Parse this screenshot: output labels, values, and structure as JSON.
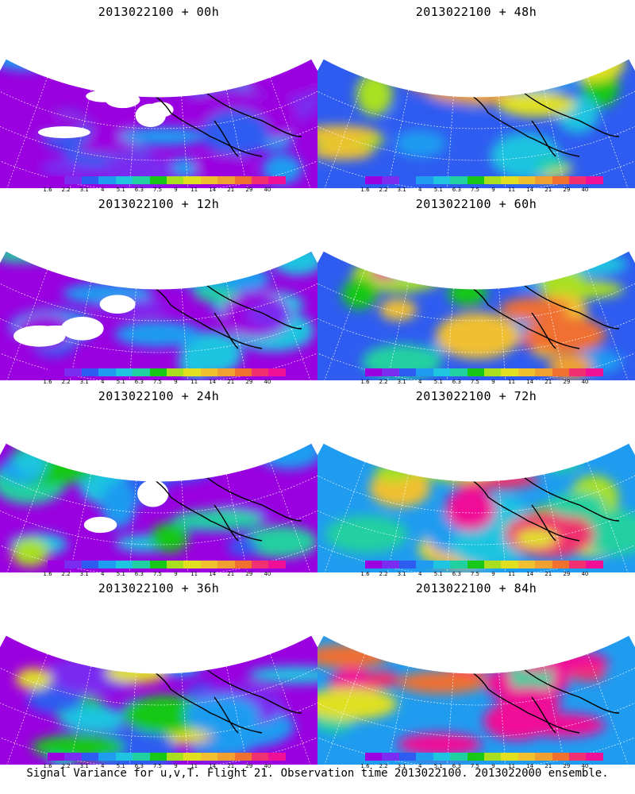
{
  "figure": {
    "caption": "Signal Variance for u,v,T. Flight 21. Observation time 2013022100. 2013022000 ensemble."
  },
  "colorbar": {
    "colors": [
      "#9a00e0",
      "#7a2cf0",
      "#2f5cf0",
      "#1f9cf0",
      "#1fc4e0",
      "#20d0a0",
      "#18c818",
      "#a8e020",
      "#e0e020",
      "#f0c030",
      "#f0a030",
      "#f07030",
      "#f03070",
      "#f01098"
    ],
    "labels": [
      "1.6",
      "2.2",
      "3.1",
      "4",
      "5.1",
      "6.3",
      "7.5",
      "9",
      "11",
      "14",
      "21",
      "29",
      "40"
    ]
  },
  "panels": [
    {
      "title": "2013022100 + 00h",
      "intensity": 0
    },
    {
      "title": "2013022100 + 48h",
      "intensity": 4
    },
    {
      "title": "2013022100 + 12h",
      "intensity": 1
    },
    {
      "title": "2013022100 + 60h",
      "intensity": 5
    },
    {
      "title": "2013022100 + 24h",
      "intensity": 2
    },
    {
      "title": "2013022100 + 72h",
      "intensity": 6
    },
    {
      "title": "2013022100 + 36h",
      "intensity": 3
    },
    {
      "title": "2013022100 + 84h",
      "intensity": 7
    }
  ]
}
